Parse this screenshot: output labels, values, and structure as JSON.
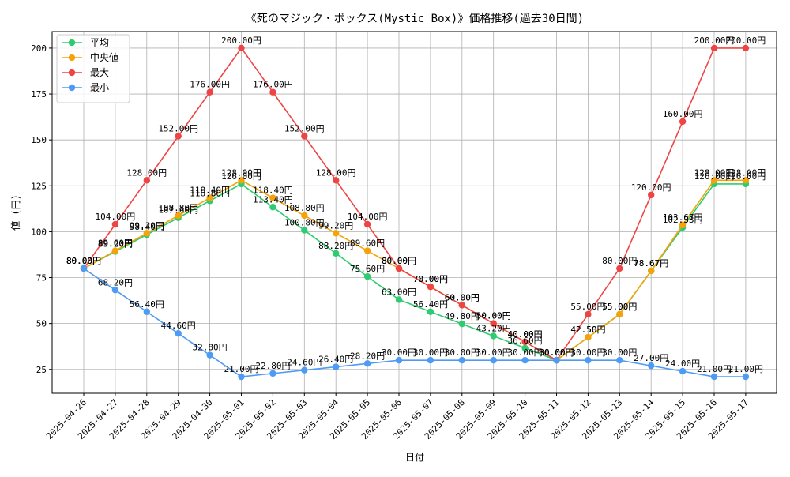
{
  "chart_data": {
    "type": "line",
    "title": "《死のマジック・ボックス(Mystic Box)》価格推移(過去30日間)",
    "xlabel": "日付",
    "ylabel": "値 (円)",
    "ylim": [
      12,
      209
    ],
    "yticks": [
      25,
      50,
      75,
      100,
      125,
      150,
      175,
      200
    ],
    "grid": true,
    "legend_position": "top-left",
    "categories": [
      "2025-04-26",
      "2025-04-27",
      "2025-04-28",
      "2025-04-29",
      "2025-04-30",
      "2025-05-01",
      "2025-05-02",
      "2025-05-03",
      "2025-05-04",
      "2025-05-05",
      "2025-05-06",
      "2025-05-07",
      "2025-05-08",
      "2025-05-09",
      "2025-05-10",
      "2025-05-11",
      "2025-05-12",
      "2025-05-13",
      "2025-05-14",
      "2025-05-15",
      "2025-05-16",
      "2025-05-17"
    ],
    "series": [
      {
        "name": "平均",
        "color": "#2ecc71",
        "values": [
          80,
          89.2,
          98.4,
          107.6,
          116.8,
          126,
          113.4,
          100.8,
          88.2,
          75.6,
          63,
          56.4,
          49.8,
          43.2,
          36.6,
          30,
          42.5,
          55,
          78.67,
          102.33,
          126,
          126
        ],
        "labels": [
          "80.00円",
          "89.20円",
          "98.40円",
          "107.60円",
          "116.80円",
          "126.00円",
          "113.40円",
          "100.80円",
          "88.20円",
          "75.60円",
          "63.00円",
          "56.40円",
          "49.80円",
          "43.20円",
          "36.60円",
          "30.00円",
          "42.50円",
          "55.00円",
          "78.67円",
          "102.33円",
          "126.00円",
          "126.00円"
        ]
      },
      {
        "name": "中央値",
        "color": "#f5a30a",
        "values": [
          80,
          89.6,
          99.2,
          108.8,
          118.4,
          128,
          118.4,
          108.8,
          99.2,
          89.6,
          80,
          70,
          60,
          50,
          40,
          30,
          42.5,
          55,
          78.67,
          103.67,
          128,
          128
        ],
        "labels": [
          "80.00円",
          "89.60円",
          "99.20円",
          "108.80円",
          "118.40円",
          "128.00円",
          "118.40円",
          "108.80円",
          "99.20円",
          "89.60円",
          "80.00円",
          "70.00円",
          "60.00円",
          "50.00円",
          "40.00円",
          "30.00円",
          "42.50円",
          "55.00円",
          "78.67円",
          "103.67円",
          "128.00円",
          "128.00円"
        ]
      },
      {
        "name": "最大",
        "color": "#ef4444",
        "values": [
          80,
          104,
          128,
          152,
          176,
          200,
          176,
          152,
          128,
          104,
          80,
          70,
          60,
          50,
          40,
          30,
          55,
          80,
          120,
          160,
          200,
          200
        ],
        "labels": [
          "80.00円",
          "104.00円",
          "128.00円",
          "152.00円",
          "176.00円",
          "200.00円",
          "176.00円",
          "152.00円",
          "128.00円",
          "104.00円",
          "80.00円",
          "70.00円",
          "60.00円",
          "50.00円",
          "40.00円",
          "30.00円",
          "55.00円",
          "80.00円",
          "120.00円",
          "160.00円",
          "200.00円",
          "200.00円"
        ]
      },
      {
        "name": "最小",
        "color": "#4d9bf5",
        "values": [
          80,
          68.2,
          56.4,
          44.6,
          32.8,
          21,
          22.8,
          24.6,
          26.4,
          28.2,
          30,
          30,
          30,
          30,
          30,
          30,
          30,
          30,
          27,
          24,
          21,
          21
        ],
        "labels": [
          "80.00円",
          "68.20円",
          "56.40円",
          "44.60円",
          "32.80円",
          "21.00円",
          "22.80円",
          "24.60円",
          "26.40円",
          "28.20円",
          "30.00円",
          "30.00円",
          "30.00円",
          "30.00円",
          "30.00円",
          "30.00円",
          "30.00円",
          "30.00円",
          "27.00円",
          "24.00円",
          "21.00円",
          "21.00円"
        ]
      }
    ]
  }
}
